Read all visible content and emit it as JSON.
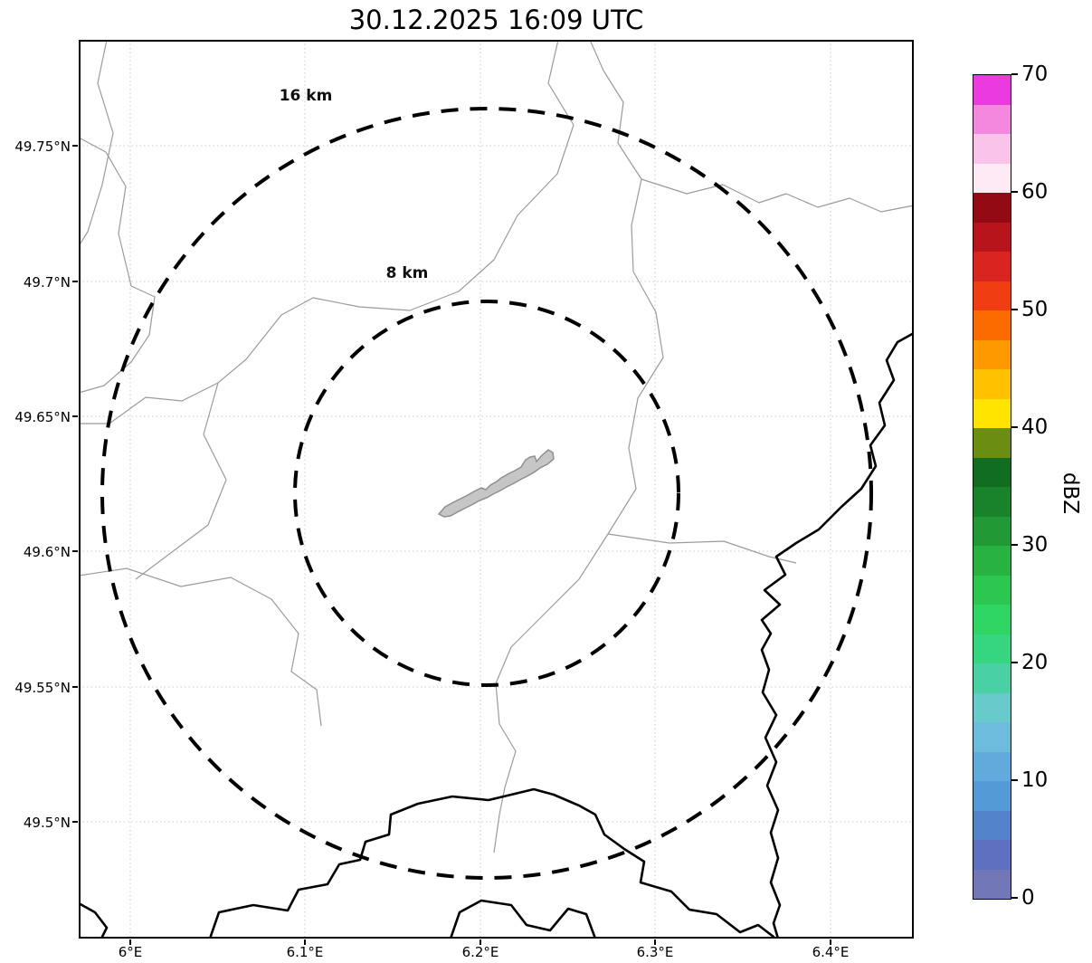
{
  "title": "30.12.2025 16:09 UTC",
  "map": {
    "rings": [
      {
        "label": "16 km"
      },
      {
        "label": "8 km"
      }
    ],
    "colors": {
      "range_ring": "#000000",
      "country_border": "#000000",
      "admin_boundary": "#9b9b9b",
      "city_fill": "#c6c6c6",
      "grid": "#c9c9c9"
    }
  },
  "axes": {
    "x_ticks": [
      "6°E",
      "6.1°E",
      "6.2°E",
      "6.3°E",
      "6.4°E"
    ],
    "y_ticks": [
      "49.75°N",
      "49.7°N",
      "49.65°N",
      "49.6°N",
      "49.55°N",
      "49.5°N"
    ]
  },
  "colorbar": {
    "label": "dBZ",
    "tick_labels_top_to_bottom": [
      "70",
      "60",
      "50",
      "40",
      "30",
      "20",
      "10",
      "0"
    ],
    "colors_bottom_to_top": [
      "#7177b7",
      "#5f70c1",
      "#5383cb",
      "#549ad6",
      "#60abdb",
      "#6ebcdd",
      "#66cbca",
      "#49d1a5",
      "#36d681",
      "#2fd562",
      "#2cc750",
      "#28b242",
      "#219a36",
      "#18832b",
      "#116e20",
      "#6b8d11",
      "#ffe400",
      "#ffc100",
      "#ff9900",
      "#fb6b00",
      "#f13d12",
      "#da2420",
      "#b8141b",
      "#930a15",
      "#fdeaf5",
      "#fac4ea",
      "#f488de",
      "#eb3ae0"
    ]
  },
  "chart_data": {
    "type": "map",
    "title": "30.12.2025 16:09 UTC",
    "x_axis_ticks": [
      "6°E",
      "6.1°E",
      "6.2°E",
      "6.3°E",
      "6.4°E"
    ],
    "y_axis_ticks": [
      "49.75°N",
      "49.7°N",
      "49.65°N",
      "49.6°N",
      "49.55°N",
      "49.5°N"
    ],
    "range_rings_km": [
      16,
      8
    ],
    "colorbar": {
      "label": "dBZ",
      "min": 0,
      "max": 70,
      "ticks": [
        0,
        10,
        20,
        30,
        40,
        50,
        60,
        70
      ]
    }
  }
}
